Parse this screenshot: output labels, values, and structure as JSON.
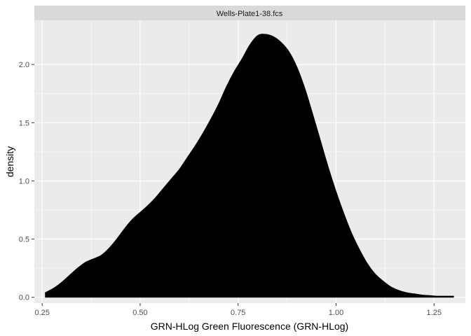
{
  "chart_data": {
    "type": "area",
    "panel_title": "Wells-Plate1-38.fcs",
    "xlabel": "GRN-HLog Green Fluorescence (GRN-HLog)",
    "ylabel": "density",
    "xlim": [
      0.23,
      1.33
    ],
    "ylim": [
      -0.05,
      2.38
    ],
    "x_ticks": [
      0.25,
      0.5,
      0.75,
      1.0
    ],
    "x_tick_labels": [
      "0.25",
      "0.50",
      "0.75",
      "1.00"
    ],
    "x_ticks_extra": [
      1.25
    ],
    "x_tick_labels_extra": [
      "1.25"
    ],
    "y_ticks": [
      0.0,
      0.5,
      1.0,
      1.5,
      2.0
    ],
    "y_tick_labels": [
      "0.0",
      "0.5",
      "1.0",
      "1.5",
      "2.0"
    ],
    "grid": true,
    "fill_color": "#000000",
    "panel_background": "#ebebeb",
    "strip_background": "#d9d9d9",
    "series": [
      {
        "x": [
          0.258,
          0.28,
          0.3,
          0.32,
          0.34,
          0.36,
          0.38,
          0.4,
          0.42,
          0.44,
          0.46,
          0.48,
          0.5,
          0.52,
          0.54,
          0.56,
          0.58,
          0.6,
          0.62,
          0.64,
          0.66,
          0.68,
          0.7,
          0.72,
          0.74,
          0.76,
          0.78,
          0.8,
          0.82,
          0.84,
          0.86,
          0.88,
          0.9,
          0.92,
          0.94,
          0.96,
          0.98,
          1.0,
          1.02,
          1.04,
          1.06,
          1.08,
          1.1,
          1.12,
          1.14,
          1.16,
          1.18,
          1.2,
          1.22,
          1.24,
          1.26,
          1.28,
          1.3
        ],
        "values": [
          0.04,
          0.08,
          0.13,
          0.19,
          0.25,
          0.3,
          0.33,
          0.36,
          0.42,
          0.5,
          0.59,
          0.67,
          0.73,
          0.79,
          0.86,
          0.94,
          1.02,
          1.1,
          1.2,
          1.3,
          1.41,
          1.53,
          1.66,
          1.81,
          1.94,
          2.05,
          2.17,
          2.25,
          2.26,
          2.24,
          2.19,
          2.11,
          1.98,
          1.8,
          1.58,
          1.35,
          1.12,
          0.91,
          0.72,
          0.55,
          0.41,
          0.29,
          0.2,
          0.14,
          0.09,
          0.06,
          0.04,
          0.03,
          0.02,
          0.015,
          0.01,
          0.01,
          0.01
        ]
      }
    ]
  }
}
